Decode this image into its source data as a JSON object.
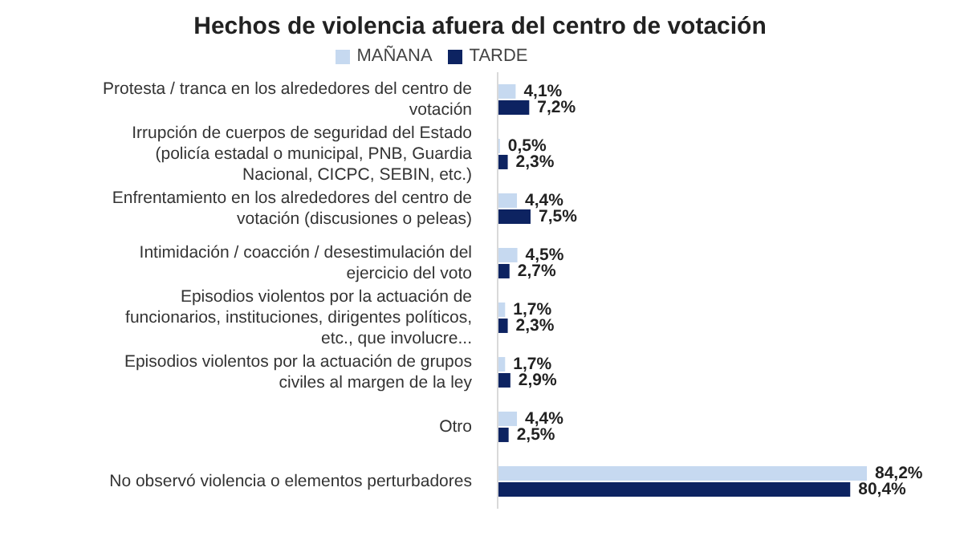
{
  "chart_data": {
    "type": "bar",
    "orientation": "horizontal",
    "title": "Hechos de violencia afuera del centro de votación",
    "categories": [
      "Protesta / tranca en los alrededores del centro de votación",
      "Irrupción de cuerpos de seguridad del Estado (policía estadal o municipal, PNB, Guardia Nacional, CICPC, SEBIN, etc.)",
      "Enfrentamiento en los alrededores del centro de votación (discusiones o peleas)",
      "Intimidación / coacción / desestimulación del ejercicio del voto",
      "Episodios violentos por la actuación de funcionarios, instituciones, dirigentes políticos, etc., que involucre...",
      "Episodios violentos por la actuación de grupos civiles al margen de la ley",
      "Otro",
      "No observó violencia o elementos perturbadores"
    ],
    "series": [
      {
        "name": "MAÑANA",
        "color": "#c6d9f0",
        "values": [
          4.1,
          0.5,
          4.4,
          4.5,
          1.7,
          1.7,
          4.4,
          84.2
        ],
        "value_labels": [
          "4,1%",
          "0,5%",
          "4,4%",
          "4,5%",
          "1,7%",
          "1,7%",
          "4,4%",
          "84,2%"
        ]
      },
      {
        "name": "TARDE",
        "color": "#0d2361",
        "values": [
          7.2,
          2.3,
          7.5,
          2.7,
          2.3,
          2.9,
          2.5,
          80.4
        ],
        "value_labels": [
          "7,2%",
          "2,3%",
          "7,5%",
          "2,7%",
          "2,3%",
          "2,9%",
          "2,5%",
          "80,4%"
        ]
      }
    ],
    "legend": "top",
    "grid": false
  }
}
